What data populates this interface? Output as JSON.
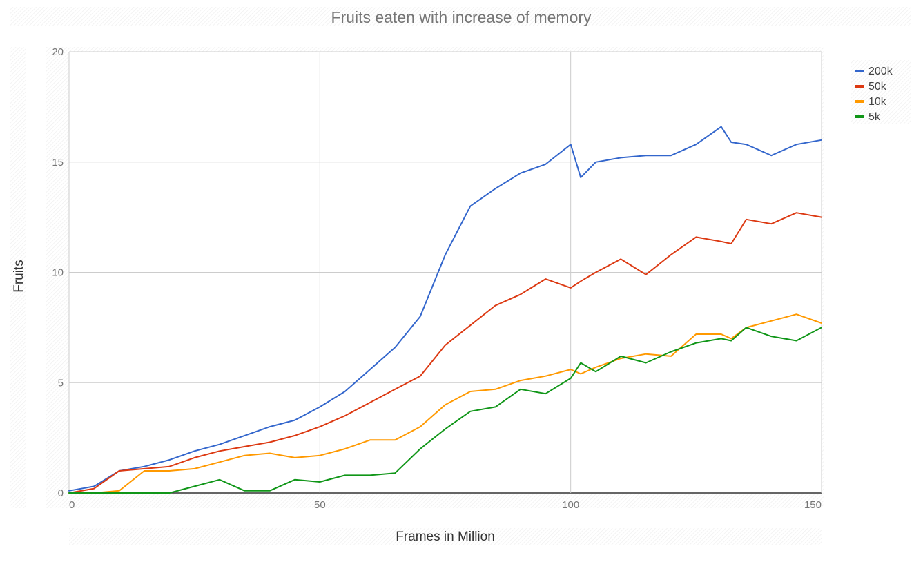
{
  "chart_data": {
    "type": "line",
    "title": "Fruits eaten with increase of memory",
    "xlabel": "Frames in Million",
    "ylabel": "Fruits",
    "xlim": [
      0,
      150
    ],
    "ylim": [
      0,
      20
    ],
    "x_ticks": [
      0,
      50,
      100,
      150
    ],
    "y_ticks": [
      0,
      5,
      10,
      15,
      20
    ],
    "grid": true,
    "legend_position": "right",
    "x": [
      0,
      5,
      10,
      15,
      20,
      25,
      30,
      35,
      40,
      45,
      50,
      55,
      60,
      65,
      70,
      75,
      80,
      85,
      90,
      95,
      100,
      102,
      105,
      110,
      115,
      120,
      125,
      130,
      132,
      135,
      140,
      145,
      150
    ],
    "series": [
      {
        "name": "200k",
        "color": "#3366cc",
        "values": [
          0.1,
          0.3,
          1.0,
          1.2,
          1.5,
          1.9,
          2.2,
          2.6,
          3.0,
          3.3,
          3.9,
          4.6,
          5.6,
          6.6,
          8.0,
          10.8,
          13.0,
          13.8,
          14.5,
          14.9,
          15.8,
          14.3,
          15.0,
          15.2,
          15.3,
          15.3,
          15.8,
          16.6,
          15.9,
          15.8,
          15.3,
          15.8,
          16.0
        ]
      },
      {
        "name": "50k",
        "color": "#dc3912",
        "values": [
          0.0,
          0.2,
          1.0,
          1.1,
          1.2,
          1.6,
          1.9,
          2.1,
          2.3,
          2.6,
          3.0,
          3.5,
          4.1,
          4.7,
          5.3,
          6.7,
          7.6,
          8.5,
          9.0,
          9.7,
          9.3,
          9.6,
          10.0,
          10.6,
          9.9,
          10.8,
          11.6,
          11.4,
          11.3,
          12.4,
          12.2,
          12.7,
          12.5
        ]
      },
      {
        "name": "10k",
        "color": "#ff9900",
        "values": [
          0.0,
          0.0,
          0.1,
          1.0,
          1.0,
          1.1,
          1.4,
          1.7,
          1.8,
          1.6,
          1.7,
          2.0,
          2.4,
          2.4,
          3.0,
          4.0,
          4.6,
          4.7,
          5.1,
          5.3,
          5.6,
          5.4,
          5.7,
          6.1,
          6.3,
          6.2,
          7.2,
          7.2,
          7.0,
          7.5,
          7.8,
          8.1,
          7.7
        ]
      },
      {
        "name": "5k",
        "color": "#109618",
        "values": [
          0.0,
          0.0,
          0.0,
          0.0,
          0.0,
          0.3,
          0.6,
          0.1,
          0.1,
          0.6,
          0.5,
          0.8,
          0.8,
          0.9,
          2.0,
          2.9,
          3.7,
          3.9,
          4.7,
          4.5,
          5.2,
          5.9,
          5.5,
          6.2,
          5.9,
          6.4,
          6.8,
          7.0,
          6.9,
          7.5,
          7.1,
          6.9,
          7.5
        ]
      }
    ]
  }
}
